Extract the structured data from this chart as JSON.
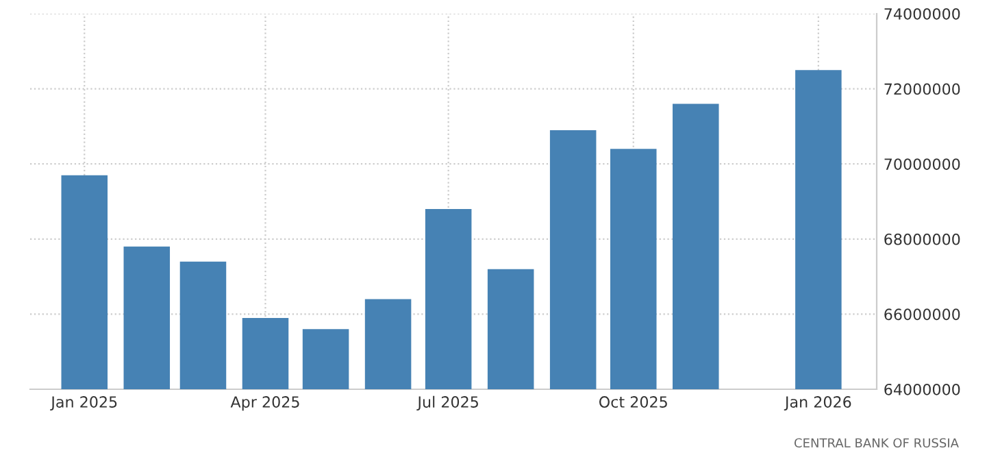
{
  "chart_data": {
    "type": "bar",
    "x": [
      "2025-01",
      "2025-02",
      "2025-03",
      "2025-04",
      "2025-05",
      "2025-06",
      "2025-07",
      "2025-08",
      "2025-09",
      "2025-10",
      "2025-11",
      "2025-12",
      "2026-01"
    ],
    "values": [
      69700000,
      67800000,
      67400000,
      65900000,
      65600000,
      66400000,
      68800000,
      67200000,
      70900000,
      70400000,
      71600000,
      null,
      72500000
    ],
    "color": "#4682b4",
    "xlim": [
      "2024-12-05",
      "2026-01-30"
    ],
    "xticks": [
      {
        "value": "2025-01",
        "label": "Jan 2025"
      },
      {
        "value": "2025-04",
        "label": "Apr 2025"
      },
      {
        "value": "2025-07",
        "label": "Jul 2025"
      },
      {
        "value": "2025-10",
        "label": "Oct 2025"
      },
      {
        "value": "2026-01",
        "label": "Jan 2026"
      }
    ],
    "ylim": [
      64000000,
      74000000
    ],
    "yticks": [
      64000000,
      66000000,
      68000000,
      70000000,
      72000000,
      74000000
    ],
    "grid": true,
    "annotations": [
      "CENTRAL BANK OF RUSSIA"
    ]
  }
}
